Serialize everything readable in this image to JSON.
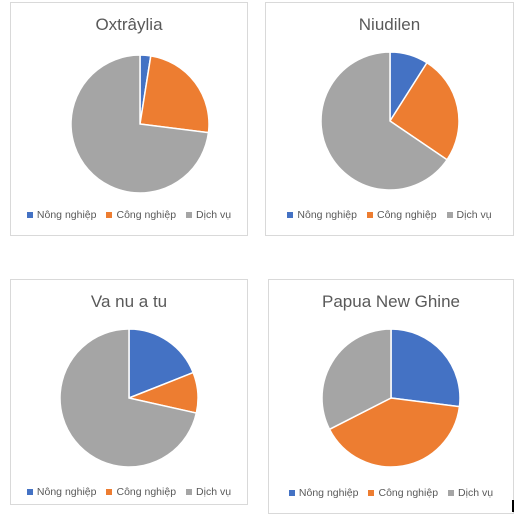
{
  "legend": {
    "labels": [
      "Nông nghiệp",
      "Công nghiệp",
      "Dịch vụ"
    ],
    "colors": [
      "#4472c4",
      "#ed7d31",
      "#a5a5a5"
    ]
  },
  "chart_data": [
    {
      "type": "pie",
      "title": "Oxtrâylia",
      "categories": [
        "Nông nghiệp",
        "Công nghiệp",
        "Dịch vụ"
      ],
      "values": [
        2.5,
        24.5,
        73.0
      ]
    },
    {
      "type": "pie",
      "title": "Niudilen",
      "categories": [
        "Nông nghiệp",
        "Công nghiệp",
        "Dịch vụ"
      ],
      "values": [
        9.0,
        25.5,
        65.5
      ]
    },
    {
      "type": "pie",
      "title": "Va nu a tu",
      "categories": [
        "Nông nghiệp",
        "Công nghiệp",
        "Dịch vụ"
      ],
      "values": [
        19.0,
        9.5,
        71.5
      ]
    },
    {
      "type": "pie",
      "title": "Papua New Ghine",
      "categories": [
        "Nông nghiệp",
        "Công nghiệp",
        "Dịch vụ"
      ],
      "values": [
        27.0,
        40.5,
        32.5
      ]
    }
  ]
}
